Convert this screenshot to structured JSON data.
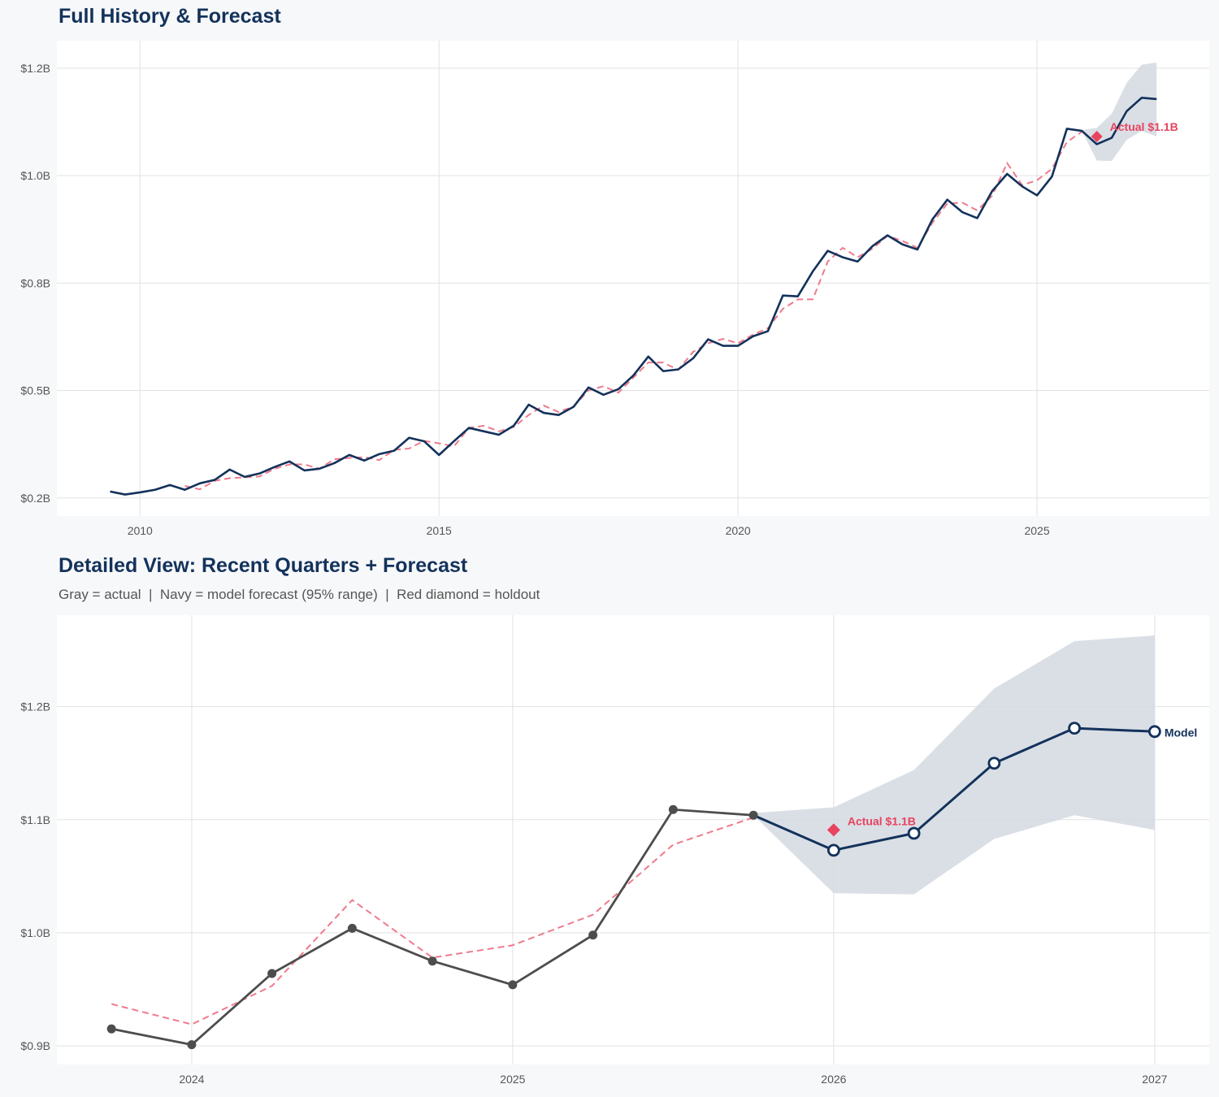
{
  "colors": {
    "navy": "#13325b",
    "actual_gray": "#4d4d4d",
    "fitted_red": "#ef7a8c",
    "holdout_red": "#e8435f",
    "band": "#d3d9e2"
  },
  "chart_data": [
    {
      "type": "line",
      "title": "Full History & Forecast",
      "xlim": [
        2008.61,
        2027.88
      ],
      "ylim": [
        0.208,
        1.314
      ],
      "grid": true,
      "x_ticks": [
        2010,
        2015,
        2020,
        2025
      ],
      "x_tick_labels": [
        "2010",
        "2015",
        "2020",
        "2025"
      ],
      "y_ticks": [
        0.25,
        0.5,
        0.75,
        1.0,
        1.25
      ],
      "y_tick_labels": [
        "$0.2B",
        "$0.5B",
        "$0.8B",
        "$1.0B",
        "$1.2B"
      ],
      "series": [
        {
          "role": "actual+forecast",
          "style": "solid navy",
          "x": [
            2009.5,
            2009.75,
            2010,
            2010.25,
            2010.5,
            2010.75,
            2011,
            2011.25,
            2011.5,
            2011.75,
            2012,
            2012.25,
            2012.5,
            2012.75,
            2013,
            2013.25,
            2013.5,
            2013.75,
            2014,
            2014.25,
            2014.5,
            2014.75,
            2015,
            2015.25,
            2015.5,
            2015.75,
            2016,
            2016.25,
            2016.5,
            2016.75,
            2017,
            2017.25,
            2017.5,
            2017.75,
            2018,
            2018.25,
            2018.5,
            2018.75,
            2019,
            2019.25,
            2019.5,
            2019.75,
            2020,
            2020.25,
            2020.5,
            2020.75,
            2021,
            2021.25,
            2021.5,
            2021.75,
            2022,
            2022.25,
            2022.5,
            2022.75,
            2023,
            2023.25,
            2023.5,
            2023.75,
            2024,
            2024.25,
            2024.5,
            2024.75,
            2025,
            2025.25,
            2025.5,
            2025.75,
            2026,
            2026.25,
            2026.5,
            2026.75,
            2027
          ],
          "values": [
            0.265,
            0.258,
            0.263,
            0.269,
            0.28,
            0.269,
            0.284,
            0.292,
            0.316,
            0.299,
            0.307,
            0.322,
            0.335,
            0.314,
            0.318,
            0.331,
            0.35,
            0.337,
            0.352,
            0.36,
            0.39,
            0.382,
            0.35,
            0.382,
            0.413,
            0.405,
            0.397,
            0.418,
            0.467,
            0.448,
            0.443,
            0.462,
            0.507,
            0.49,
            0.503,
            0.535,
            0.579,
            0.545,
            0.549,
            0.575,
            0.619,
            0.604,
            0.604,
            0.626,
            0.638,
            0.721,
            0.719,
            0.777,
            0.825,
            0.81,
            0.8,
            0.836,
            0.861,
            0.84,
            0.828,
            0.898,
            0.944,
            0.915,
            0.901,
            0.964,
            1.004,
            0.975,
            0.954,
            0.998,
            1.109,
            1.104,
            1.073,
            1.088,
            1.15,
            1.181,
            1.178
          ]
        },
        {
          "role": "fitted",
          "style": "dashed red",
          "x": [
            2010.75,
            2011,
            2011.25,
            2011.5,
            2011.75,
            2012,
            2012.25,
            2012.5,
            2012.75,
            2013,
            2013.25,
            2013.5,
            2013.75,
            2014,
            2014.25,
            2014.5,
            2014.75,
            2015,
            2015.25,
            2015.5,
            2015.75,
            2016,
            2016.25,
            2016.5,
            2016.75,
            2017,
            2017.25,
            2017.5,
            2017.75,
            2018,
            2018.25,
            2018.5,
            2018.75,
            2019,
            2019.25,
            2019.5,
            2019.75,
            2020,
            2020.25,
            2020.5,
            2020.75,
            2021,
            2021.25,
            2021.5,
            2021.75,
            2022,
            2022.25,
            2022.5,
            2022.75,
            2023,
            2023.25,
            2023.5,
            2023.75,
            2024,
            2024.25,
            2024.5,
            2024.75,
            2025,
            2025.25,
            2025.5,
            2025.75
          ],
          "values": [
            0.278,
            0.27,
            0.29,
            0.296,
            0.298,
            0.3,
            0.318,
            0.328,
            0.328,
            0.318,
            0.34,
            0.343,
            0.345,
            0.338,
            0.362,
            0.365,
            0.383,
            0.377,
            0.37,
            0.413,
            0.418,
            0.405,
            0.415,
            0.443,
            0.465,
            0.45,
            0.463,
            0.5,
            0.51,
            0.495,
            0.53,
            0.565,
            0.565,
            0.548,
            0.59,
            0.61,
            0.62,
            0.61,
            0.63,
            0.645,
            0.69,
            0.712,
            0.712,
            0.8,
            0.832,
            0.81,
            0.83,
            0.86,
            0.848,
            0.832,
            0.89,
            0.935,
            0.937,
            0.919,
            0.953,
            1.029,
            0.978,
            0.989,
            1.016,
            1.078,
            1.102
          ]
        }
      ],
      "band": {
        "x": [
          2025.75,
          2026,
          2026.25,
          2026.5,
          2026.75,
          2027
        ],
        "upper": [
          1.106,
          1.111,
          1.144,
          1.216,
          1.258,
          1.263
        ],
        "lower": [
          1.104,
          1.035,
          1.034,
          1.083,
          1.104,
          1.091
        ]
      },
      "holdout": {
        "x": 2026.0,
        "value": 1.091,
        "label": "Actual $1.1B"
      }
    },
    {
      "type": "line",
      "title": "Detailed View: Recent Quarters + Forecast",
      "subtitle": "Gray = actual  |  Navy = model forecast (95% range)  |  Red diamond = holdout",
      "xlim": [
        2023.58,
        2027.17
      ],
      "ylim": [
        0.8835,
        1.281
      ],
      "grid": true,
      "x_ticks": [
        2024,
        2025,
        2026,
        2027
      ],
      "x_tick_labels": [
        "2024",
        "2025",
        "2026",
        "2027"
      ],
      "y_ticks": [
        0.9,
        1.0,
        1.1,
        1.2
      ],
      "y_tick_labels": [
        "$0.9B",
        "$1.0B",
        "$1.1B",
        "$1.2B"
      ],
      "actual": {
        "x": [
          2023.75,
          2024,
          2024.25,
          2024.5,
          2024.75,
          2025,
          2025.25,
          2025.5,
          2025.75
        ],
        "values": [
          0.915,
          0.901,
          0.964,
          1.004,
          0.975,
          0.954,
          0.998,
          1.109,
          1.104
        ]
      },
      "fitted": {
        "x": [
          2023.75,
          2024,
          2024.25,
          2024.5,
          2024.75,
          2025,
          2025.25,
          2025.5,
          2025.75
        ],
        "values": [
          0.937,
          0.919,
          0.953,
          1.029,
          0.978,
          0.989,
          1.016,
          1.078,
          1.102
        ]
      },
      "forecast": {
        "x": [
          2025.75,
          2026,
          2026.25,
          2026.5,
          2026.75,
          2027
        ],
        "values": [
          1.104,
          1.073,
          1.088,
          1.15,
          1.181,
          1.178
        ],
        "label": "Model"
      },
      "band": {
        "x": [
          2025.75,
          2026,
          2026.25,
          2026.5,
          2026.75,
          2027
        ],
        "upper": [
          1.106,
          1.111,
          1.144,
          1.216,
          1.258,
          1.263
        ],
        "lower": [
          1.104,
          1.035,
          1.034,
          1.083,
          1.104,
          1.091
        ]
      },
      "holdout": {
        "x": 2026.0,
        "value": 1.091,
        "label": "Actual $1.1B"
      }
    }
  ]
}
